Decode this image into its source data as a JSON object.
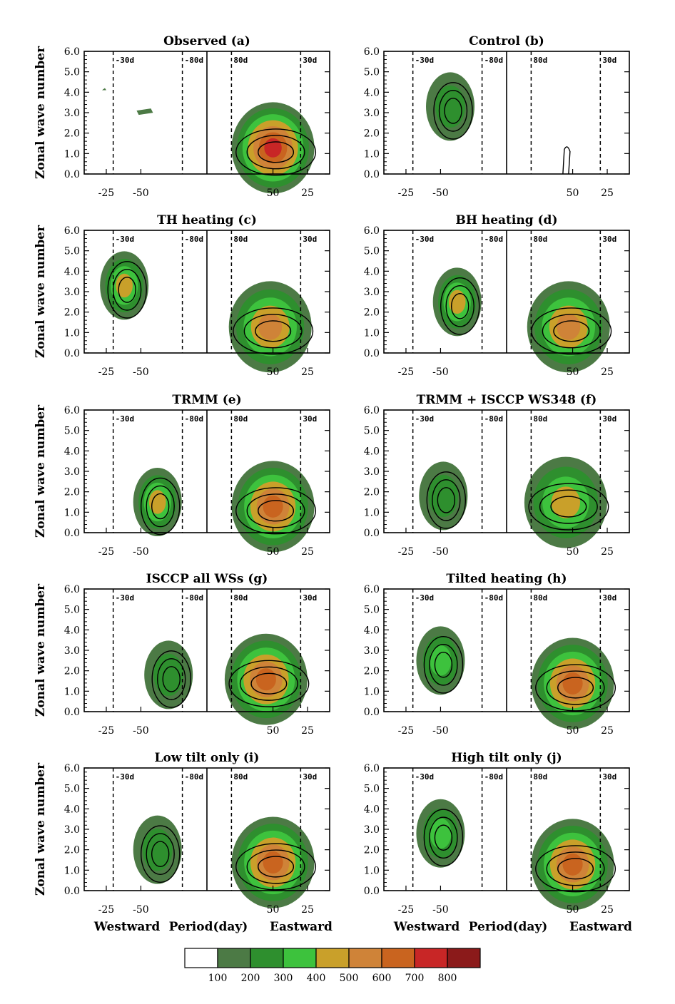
{
  "chart_data": {
    "type": "heatmap",
    "ylabel": "Zonal wave number",
    "y_ticks": [
      "0.0",
      "1.0",
      "2.0",
      "3.0",
      "4.0",
      "5.0",
      "6.0"
    ],
    "ylim": [
      0,
      6
    ],
    "x_ticks_west": [
      "-25",
      "-50"
    ],
    "x_ticks_east": [
      "50",
      "25"
    ],
    "period_labels": {
      "w30": "-30d",
      "w80": "-80d",
      "e80": "80d",
      "e30": "30d"
    },
    "bottom_labels": {
      "westward": "Westward",
      "period": "Period(day)",
      "eastward": "Eastward"
    },
    "colorbar": {
      "levels": [
        "100",
        "200",
        "300",
        "400",
        "500",
        "600",
        "700",
        "800"
      ],
      "colors": [
        "#ffffff",
        "#4c7a45",
        "#2e8f2e",
        "#3dc23d",
        "#c9a02a",
        "#cf8338",
        "#c9641f",
        "#c82626",
        "#8b1a1a"
      ]
    },
    "panels": [
      {
        "title": "Observed (a)",
        "east_core": [
          50,
          1.0
        ],
        "east_max": 650,
        "west_core": null
      },
      {
        "title": "Control (b)",
        "east_core": null,
        "east_max": 100,
        "west_core": [
          -57,
          3.3
        ],
        "west_max": 200
      },
      {
        "title": "TH heating (c)",
        "east_core": [
          52,
          1.0
        ],
        "east_max": 500,
        "west_core": [
          -38,
          3.3
        ],
        "west_max": 400
      },
      {
        "title": "BH heating (d)",
        "east_core": [
          53,
          1.0
        ],
        "east_max": 500,
        "west_core": [
          -62,
          2.5
        ],
        "west_max": 400
      },
      {
        "title": "TRMM (e)",
        "east_core": [
          50,
          1.0
        ],
        "east_max": 600,
        "west_core": [
          -62,
          1.5
        ],
        "west_max": 400
      },
      {
        "title": "TRMM + ISCCP WS348 (f)",
        "east_core": [
          55,
          1.2
        ],
        "east_max": 400,
        "west_core": [
          -52,
          1.8
        ],
        "west_max": 200
      },
      {
        "title": "ISCCP all WSs (g)",
        "east_core": [
          55,
          1.3
        ],
        "east_max": 600,
        "west_core": [
          -70,
          1.8
        ],
        "west_max": 200
      },
      {
        "title": "Tilted heating (h)",
        "east_core": [
          50,
          1.1
        ],
        "east_max": 600,
        "west_core": [
          -50,
          2.5
        ],
        "west_max": 300
      },
      {
        "title": "Low tilt only (i)",
        "east_core": [
          50,
          1.1
        ],
        "east_max": 600,
        "west_core": [
          -62,
          2.0
        ],
        "west_max": 200
      },
      {
        "title": "High tilt only (j)",
        "east_core": [
          50,
          1.0
        ],
        "east_max": 600,
        "west_core": [
          -50,
          2.8
        ],
        "west_max": 300
      }
    ]
  }
}
